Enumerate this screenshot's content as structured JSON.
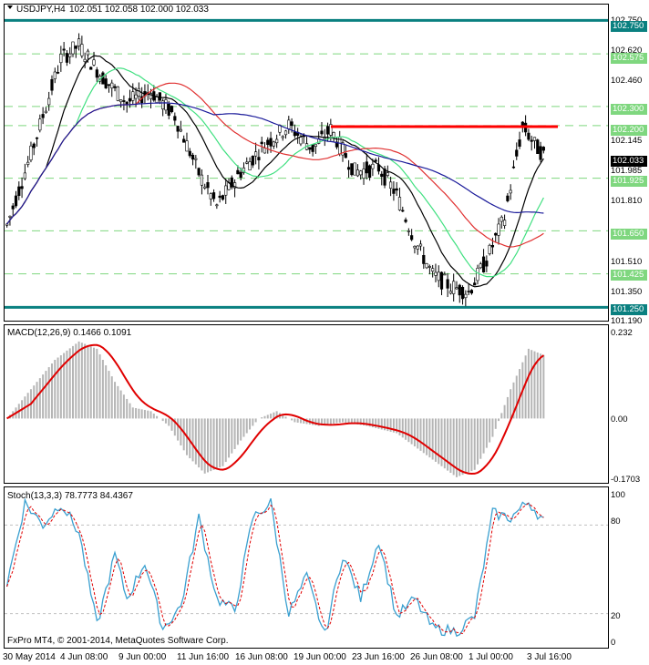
{
  "header": {
    "symbol": "USDJPY,H4",
    "ohlc": "102.051 102.058 102.000 102.033"
  },
  "price_axis": {
    "labels": [
      "102.750",
      "102.620",
      "102.575",
      "102.460",
      "102.300",
      "102.200",
      "102.145",
      "102.033",
      "101.985",
      "101.925",
      "101.810",
      "101.650",
      "101.510",
      "101.425",
      "101.350",
      "101.250",
      "101.190"
    ]
  },
  "price_panel": {
    "ylim": [
      101.19,
      102.79
    ],
    "current_price": "102.033",
    "horizontal_levels": [
      {
        "value": 102.75,
        "label": "102.750",
        "style": "solid",
        "color": "#0a8080"
      },
      {
        "value": 101.25,
        "label": "101.250",
        "style": "solid",
        "color": "#0a8080"
      },
      {
        "value": 102.575,
        "label": "102.575",
        "style": "dashed",
        "color": "#7fd77f"
      },
      {
        "value": 102.3,
        "label": "102.300",
        "style": "dashed",
        "color": "#7fd77f"
      },
      {
        "value": 102.2,
        "label": "102.200",
        "style": "dashed",
        "color": "#7fd77f"
      },
      {
        "value": 101.925,
        "label": "101.925",
        "style": "dashed",
        "color": "#7fd77f"
      },
      {
        "value": 101.65,
        "label": "101.650",
        "style": "dashed",
        "color": "#7fd77f"
      },
      {
        "value": 101.425,
        "label": "101.425",
        "style": "dashed",
        "color": "#7fd77f"
      }
    ],
    "resistance_segment": {
      "value": 102.195,
      "color": "#ff0000"
    }
  },
  "macd": {
    "label": "MACD(12,26,9) 0.1466 0.1091",
    "axis_labels": [
      "0.232",
      "0.00",
      "-0.1703"
    ],
    "ylim": [
      -0.1703,
      0.232
    ]
  },
  "stoch": {
    "label": "Stoch(13,3,3) 78.7773 84.4367",
    "axis_labels": [
      "100",
      "80",
      "20",
      "0"
    ]
  },
  "footer": {
    "copyright": "FxPro MT4, © 2001-2014, MetaQuotes Software Corp."
  },
  "time_axis": {
    "labels": [
      "30 May 2014",
      "4 Jun 08:00",
      "9 Jun 00:00",
      "11 Jun 16:00",
      "16 Jun 08:00",
      "19 Jun 00:00",
      "23 Jun 16:00",
      "26 Jun 08:00",
      "1 Jul 00:00",
      "3 Jul 16:00"
    ]
  },
  "colors": {
    "candle": "#000000",
    "ma_black": "#000000",
    "ma_red": "#e03030",
    "ma_green": "#40e080",
    "ma_blue": "#1a1a9a",
    "macd_hist": "#b5b5b5",
    "macd_signal": "#e00000",
    "stoch_main": "#3aa0d0",
    "stoch_signal": "#e00000",
    "level_teal": "#0a8080",
    "level_green": "#7fd77f",
    "current_tag": "#000000"
  },
  "chart_data": {
    "type": "line",
    "title": "USDJPY,H4",
    "x": [
      "30 May 2014",
      "4 Jun 08:00",
      "9 Jun 00:00",
      "11 Jun 16:00",
      "16 Jun 08:00",
      "19 Jun 00:00",
      "23 Jun 16:00",
      "26 Jun 08:00",
      "1 Jul 00:00",
      "3 Jul 16:00"
    ],
    "series": [
      {
        "values": [
          101.68,
          102.62,
          102.32,
          101.96,
          102.18,
          102.08,
          101.98,
          101.36,
          101.55,
          102.03
        ]
      }
    ],
    "ylim": [
      101.19,
      102.79
    ]
  }
}
